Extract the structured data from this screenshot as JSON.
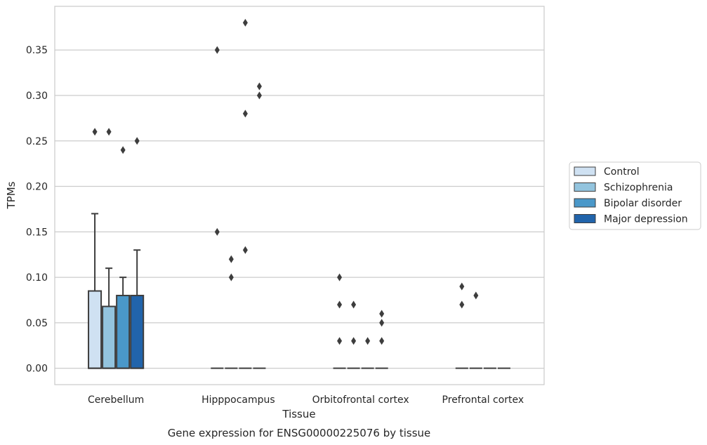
{
  "chart_data": {
    "type": "box",
    "caption": "Gene expression for ENSG00000225076 by tissue",
    "xlabel": "Tissue",
    "ylabel": "TPMs",
    "ylim": [
      -0.018,
      0.398
    ],
    "yticks": [
      0.0,
      0.05,
      0.1,
      0.15,
      0.2,
      0.25,
      0.3,
      0.35
    ],
    "ytick_labels": [
      "0.00",
      "0.05",
      "0.10",
      "0.15",
      "0.20",
      "0.25",
      "0.30",
      "0.35"
    ],
    "grid": "horizontal",
    "legend_position": "right",
    "categories": [
      "Cerebellum",
      "Hipppocampus",
      "Orbitofrontal cortex",
      "Prefrontal cortex"
    ],
    "series": [
      {
        "name": "Control",
        "color": "#cfe1f2",
        "boxes": [
          {
            "q1": 0.0,
            "median": 0.0,
            "q3": 0.085,
            "whisker_low": 0.0,
            "whisker_high": 0.17,
            "outliers": [
              0.26
            ]
          },
          {
            "q1": 0.0,
            "median": 0.0,
            "q3": 0.0,
            "whisker_low": 0.0,
            "whisker_high": 0.0,
            "outliers": [
              0.15,
              0.35
            ]
          },
          {
            "q1": 0.0,
            "median": 0.0,
            "q3": 0.0,
            "whisker_low": 0.0,
            "whisker_high": 0.0,
            "outliers": [
              0.03,
              0.07,
              0.1
            ]
          },
          {
            "q1": 0.0,
            "median": 0.0,
            "q3": 0.0,
            "whisker_low": 0.0,
            "whisker_high": 0.0,
            "outliers": [
              0.07,
              0.09
            ]
          }
        ]
      },
      {
        "name": "Schizophrenia",
        "color": "#93c4de",
        "boxes": [
          {
            "q1": 0.0,
            "median": 0.0,
            "q3": 0.068,
            "whisker_low": 0.0,
            "whisker_high": 0.11,
            "outliers": [
              0.26
            ]
          },
          {
            "q1": 0.0,
            "median": 0.0,
            "q3": 0.0,
            "whisker_low": 0.0,
            "whisker_high": 0.0,
            "outliers": [
              0.1,
              0.12
            ]
          },
          {
            "q1": 0.0,
            "median": 0.0,
            "q3": 0.0,
            "whisker_low": 0.0,
            "whisker_high": 0.0,
            "outliers": [
              0.03,
              0.07
            ]
          },
          {
            "q1": 0.0,
            "median": 0.0,
            "q3": 0.0,
            "whisker_low": 0.0,
            "whisker_high": 0.0,
            "outliers": [
              0.08
            ]
          }
        ]
      },
      {
        "name": "Bipolar disorder",
        "color": "#4a98c9",
        "boxes": [
          {
            "q1": 0.0,
            "median": 0.0,
            "q3": 0.08,
            "whisker_low": 0.0,
            "whisker_high": 0.1,
            "outliers": [
              0.24
            ]
          },
          {
            "q1": 0.0,
            "median": 0.0,
            "q3": 0.0,
            "whisker_low": 0.0,
            "whisker_high": 0.0,
            "outliers": [
              0.13,
              0.28,
              0.38
            ]
          },
          {
            "q1": 0.0,
            "median": 0.0,
            "q3": 0.0,
            "whisker_low": 0.0,
            "whisker_high": 0.0,
            "outliers": [
              0.03
            ]
          },
          {
            "q1": 0.0,
            "median": 0.0,
            "q3": 0.0,
            "whisker_low": 0.0,
            "whisker_high": 0.0,
            "outliers": []
          }
        ]
      },
      {
        "name": "Major depression",
        "color": "#2164ab",
        "boxes": [
          {
            "q1": 0.0,
            "median": 0.0,
            "q3": 0.08,
            "whisker_low": 0.0,
            "whisker_high": 0.13,
            "outliers": [
              0.25
            ]
          },
          {
            "q1": 0.0,
            "median": 0.0,
            "q3": 0.0,
            "whisker_low": 0.0,
            "whisker_high": 0.0,
            "outliers": [
              0.3,
              0.31
            ]
          },
          {
            "q1": 0.0,
            "median": 0.0,
            "q3": 0.0,
            "whisker_low": 0.0,
            "whisker_high": 0.0,
            "outliers": [
              0.03,
              0.05,
              0.06
            ]
          },
          {
            "q1": 0.0,
            "median": 0.0,
            "q3": 0.0,
            "whisker_low": 0.0,
            "whisker_high": 0.0,
            "outliers": []
          }
        ]
      }
    ]
  }
}
